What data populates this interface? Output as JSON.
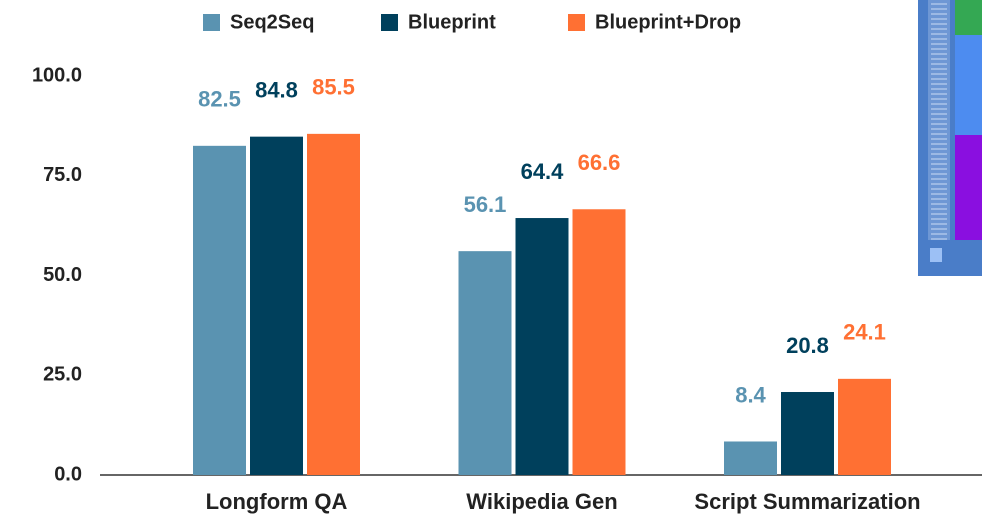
{
  "chart_data": {
    "type": "bar",
    "categories": [
      "Longform QA",
      "Wikipedia Gen",
      "Script Summarization"
    ],
    "series": [
      {
        "name": "Seq2Seq",
        "color": "#5a93b1",
        "values": [
          82.5,
          56.1,
          8.4
        ]
      },
      {
        "name": "Blueprint",
        "color": "#00405c",
        "values": [
          84.8,
          64.4,
          20.8
        ]
      },
      {
        "name": "Blueprint+Drop",
        "color": "#ff7033",
        "values": [
          85.5,
          66.6,
          24.1
        ]
      }
    ],
    "ylim": [
      0,
      100
    ],
    "yticks": [
      {
        "value": 0,
        "label": "0.0"
      },
      {
        "value": 25,
        "label": "25.0"
      },
      {
        "value": 50,
        "label": "50.0"
      },
      {
        "value": 75,
        "label": "75.0"
      },
      {
        "value": 100,
        "label": "100.0"
      }
    ],
    "grid": false,
    "legend": "top"
  }
}
